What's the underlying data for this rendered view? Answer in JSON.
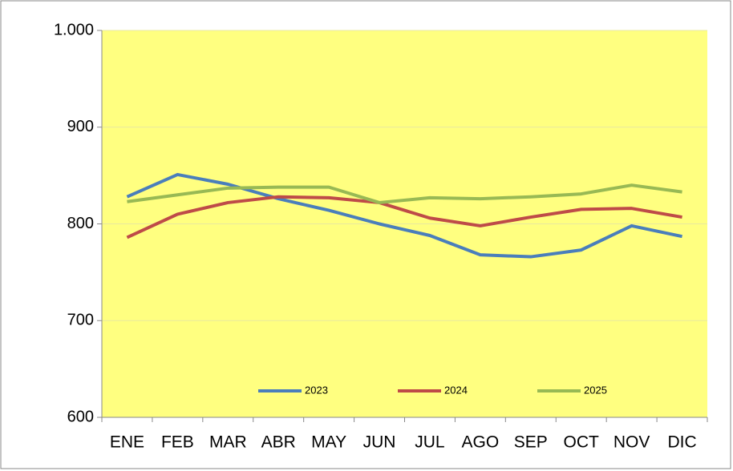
{
  "chart_data": {
    "type": "line",
    "categories": [
      "ENE",
      "FEB",
      "MAR",
      "ABR",
      "MAY",
      "JUN",
      "JUL",
      "AGO",
      "SEP",
      "OCT",
      "NOV",
      "DIC"
    ],
    "series": [
      {
        "name": "2023",
        "color": "#4a7ebb",
        "values": [
          828,
          851,
          841,
          826,
          814,
          800,
          788,
          768,
          766,
          773,
          798,
          787
        ]
      },
      {
        "name": "2024",
        "color": "#be4b48",
        "values": [
          786,
          810,
          822,
          828,
          827,
          822,
          806,
          798,
          807,
          815,
          816,
          807
        ]
      },
      {
        "name": "2025",
        "color": "#98b954",
        "values": [
          823,
          830,
          837,
          838,
          838,
          822,
          827,
          826,
          828,
          831,
          840,
          833
        ]
      }
    ],
    "ylim": [
      600,
      1000
    ],
    "yticks": [
      600,
      700,
      800,
      900,
      {
        "value": 1000,
        "label": "1.000"
      }
    ],
    "grid": true,
    "legend": "bottom"
  }
}
